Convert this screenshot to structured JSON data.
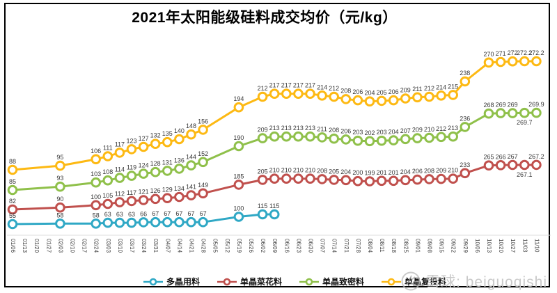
{
  "title": "2021年太阳能级硅料成交均价（元/kg）",
  "watermark": {
    "logo": "xueqiu-snowball-logo",
    "text": "雪球: beiguoqishi"
  },
  "chart_data": {
    "type": "line",
    "title": "2021年太阳能级硅料成交均价（元/kg）",
    "unit": "元/kg",
    "legend_position": "bottom",
    "grid": false,
    "y_axis_visible": false,
    "x": [
      "01/06",
      "01/13",
      "01/20",
      "01/27",
      "02/03",
      "02/10",
      "02/17",
      "02/24",
      "03/03",
      "03/10",
      "03/17",
      "03/24",
      "03/31",
      "04/07",
      "04/14",
      "04/21",
      "04/28",
      "05/05",
      "05/12",
      "05/19",
      "05/26",
      "06/02",
      "06/09",
      "06/16",
      "06/23",
      "06/30",
      "07/07",
      "07/14",
      "07/21",
      "07/28",
      "08/04",
      "08/11",
      "08/18",
      "08/25",
      "09/01",
      "09/08",
      "09/15",
      "09/22",
      "09/29",
      "10/06",
      "10/13",
      "10/20",
      "10/27",
      "11/03",
      "11/10"
    ],
    "series": [
      {
        "name": "多晶用料",
        "color": "#2FA8C5",
        "values": [
          55,
          null,
          null,
          null,
          58,
          null,
          null,
          58,
          63,
          63,
          63,
          66,
          67,
          67,
          67,
          67,
          67,
          null,
          null,
          100,
          null,
          115,
          115,
          null,
          null,
          null,
          null,
          null,
          null,
          null,
          null,
          null,
          null,
          null,
          null,
          null,
          null,
          null,
          null,
          null,
          null,
          null,
          null,
          null,
          null
        ]
      },
      {
        "name": "单晶菜花料",
        "color": "#C0504D",
        "values": [
          82,
          null,
          null,
          null,
          90,
          null,
          null,
          100,
          105,
          112,
          117,
          121,
          126,
          129,
          134,
          141,
          149,
          null,
          null,
          185,
          null,
          205,
          210,
          210,
          210,
          210,
          208,
          205,
          204,
          200,
          199,
          201,
          201,
          204,
          206,
          208,
          209,
          210,
          233,
          null,
          265,
          266,
          267,
          267.1,
          267.2
        ]
      },
      {
        "name": "单晶致密料",
        "color": "#8FC04A",
        "values": [
          85,
          null,
          null,
          null,
          93,
          null,
          null,
          103,
          108,
          114,
          119,
          124,
          128,
          131,
          136,
          144,
          152,
          null,
          null,
          190,
          null,
          209,
          213,
          213,
          213,
          213,
          211,
          208,
          206,
          203,
          202,
          203,
          204,
          207,
          209,
          210,
          212,
          213,
          236,
          null,
          268,
          269,
          269,
          269.7,
          269.9
        ]
      },
      {
        "name": "单晶复投料",
        "color": "#FDB913",
        "values": [
          88,
          null,
          null,
          null,
          95,
          null,
          null,
          106,
          111,
          117,
          123,
          127,
          132,
          135,
          140,
          148,
          156,
          null,
          null,
          194,
          null,
          212,
          217,
          217,
          217,
          217,
          214,
          212,
          208,
          206,
          204,
          205,
          206,
          209,
          211,
          212,
          214,
          215,
          238,
          null,
          270,
          271,
          272,
          272.2,
          272.2
        ]
      }
    ]
  }
}
